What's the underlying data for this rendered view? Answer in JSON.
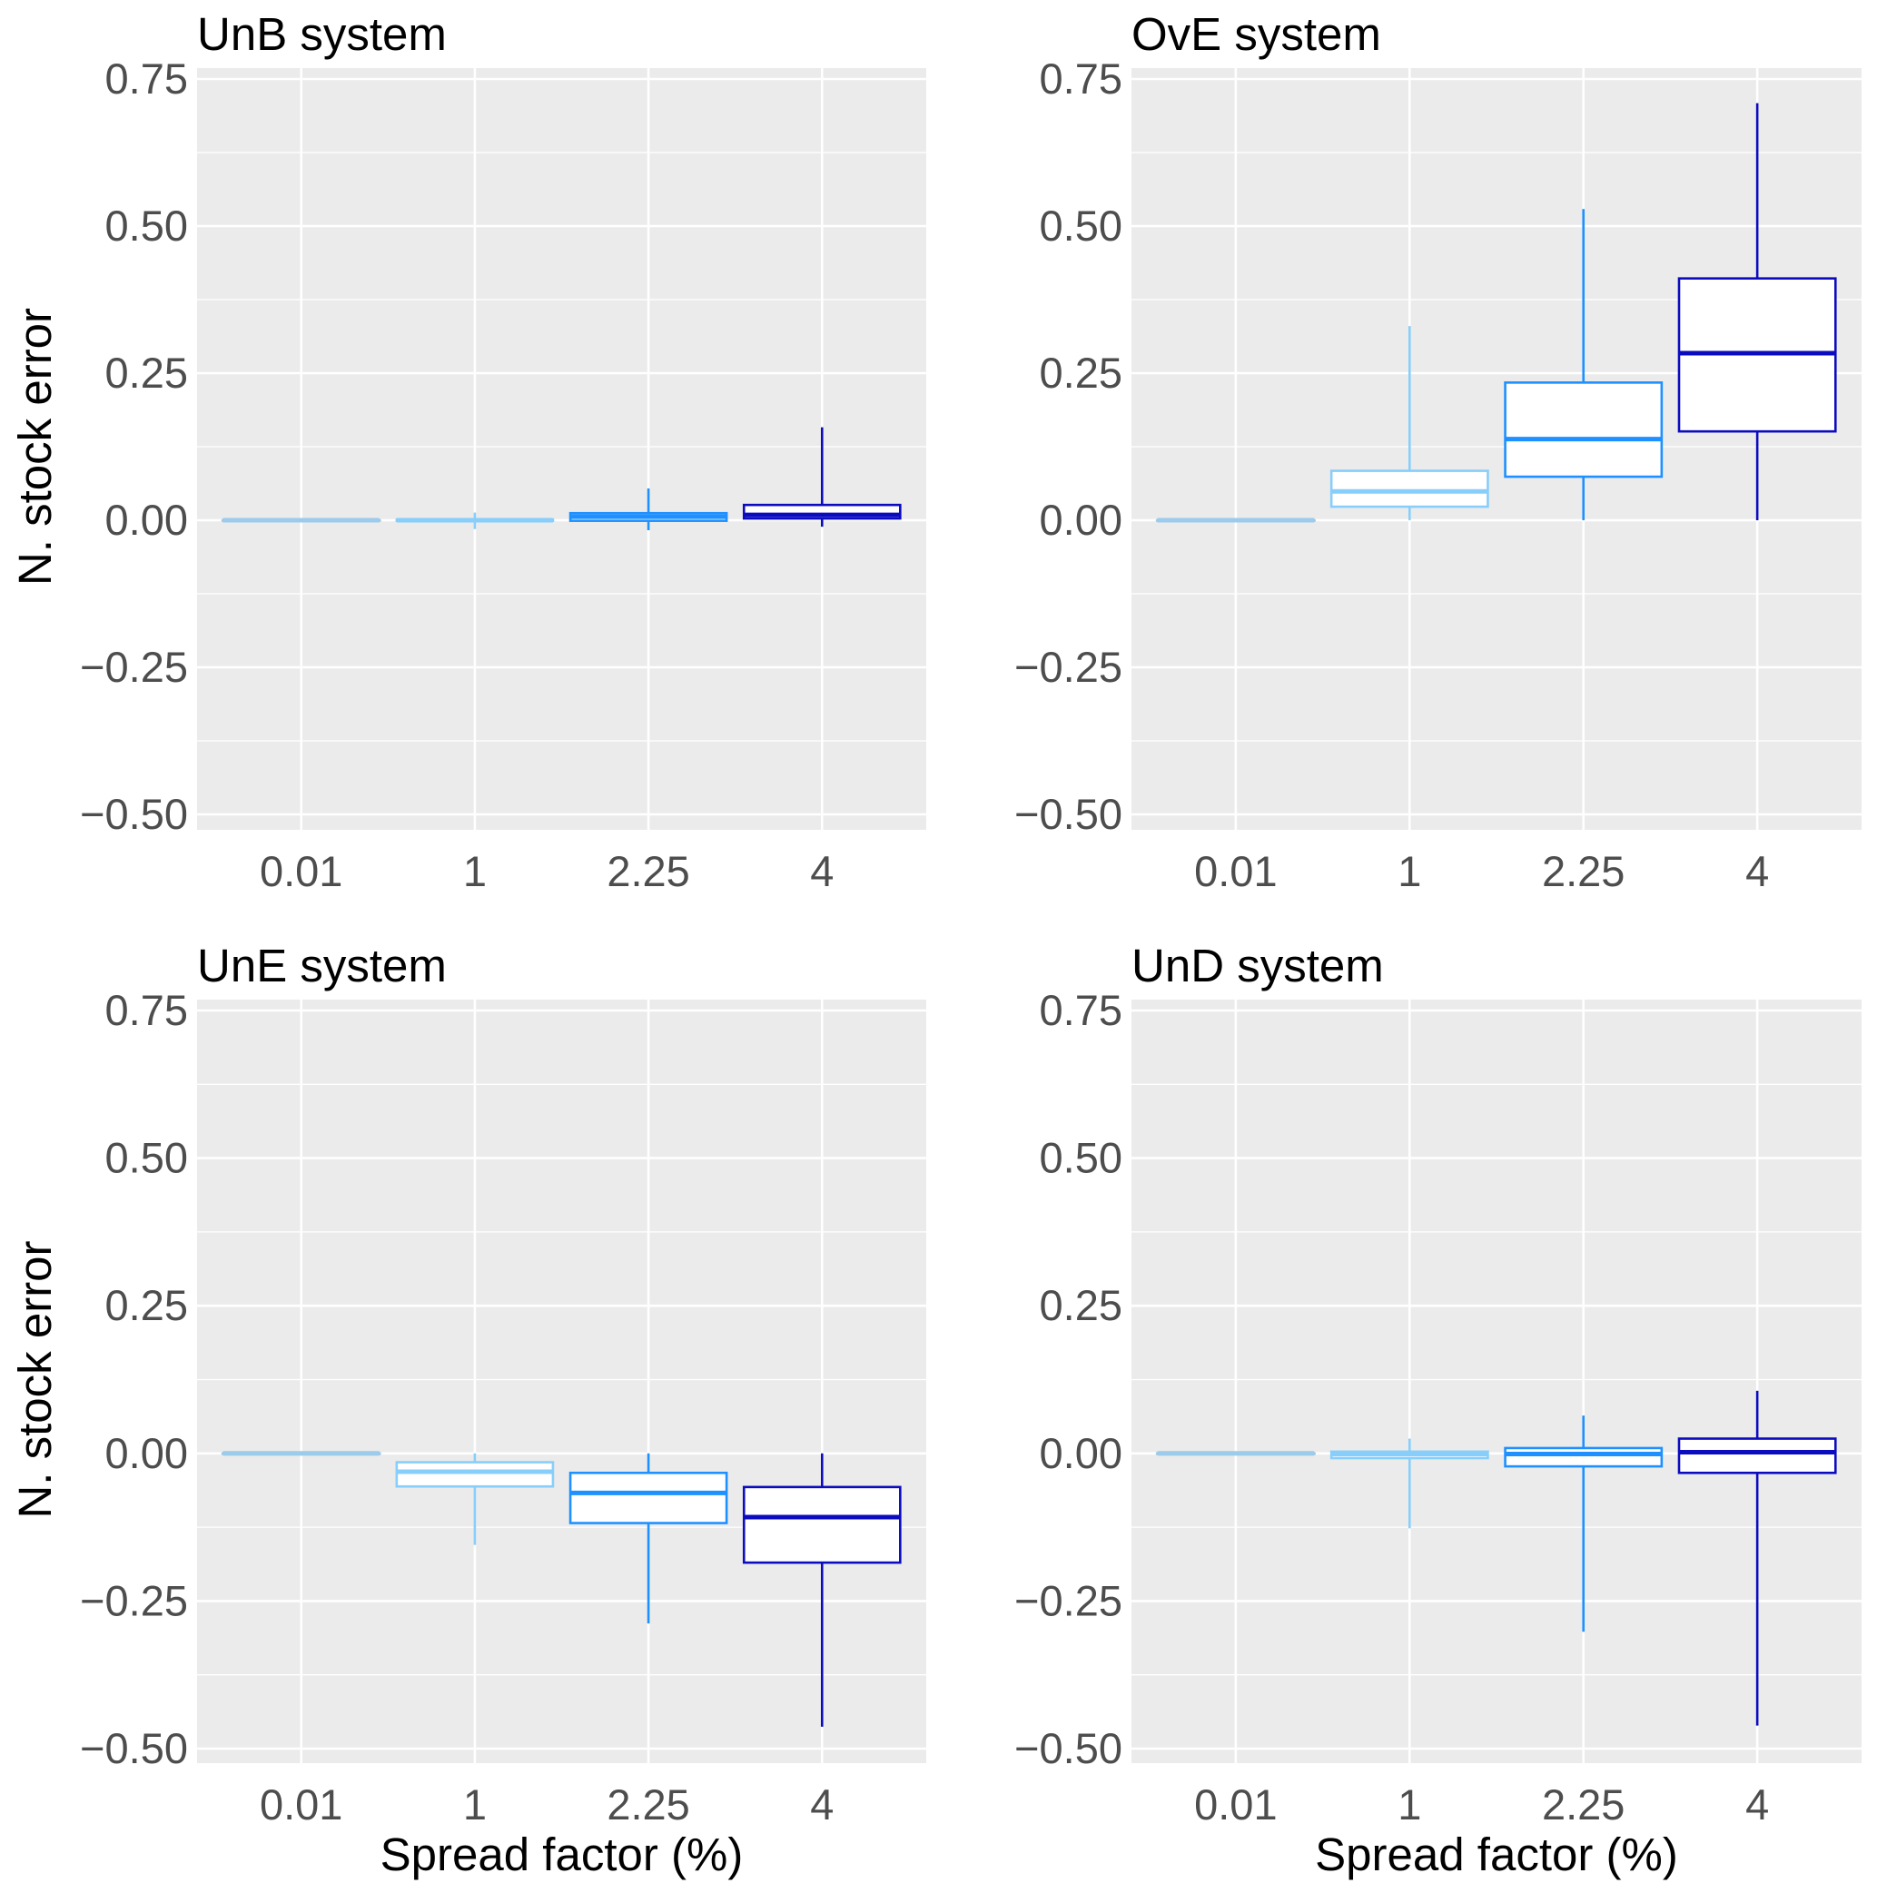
{
  "chart_data": [
    {
      "type": "box",
      "title": "UnB system",
      "xlabel": "",
      "ylabel": "N. stock error",
      "ylim": [
        -0.5,
        0.75
      ],
      "yticks": [
        "0.75",
        "0.50",
        "0.25",
        "0.00",
        "−0.25",
        "−0.50"
      ],
      "ytick_values": [
        0.75,
        0.5,
        0.25,
        0.0,
        -0.25,
        -0.5
      ],
      "categories": [
        "0.01",
        "1",
        "2.25",
        "4"
      ],
      "colors": [
        "#9ccbeb",
        "#87cefa",
        "#1e90ff",
        "#0b0bbf"
      ],
      "boxes": [
        {
          "category": "0.01",
          "whisker_low": 0.0,
          "q1": 0.0,
          "median": 0.0,
          "q3": 0.0,
          "whisker_high": 0.0
        },
        {
          "category": "1",
          "whisker_low": -0.015,
          "q1": -0.001,
          "median": 0.0,
          "q3": 0.001,
          "whisker_high": 0.013
        },
        {
          "category": "2.25",
          "whisker_low": -0.017,
          "q1": -0.001,
          "median": 0.006,
          "q3": 0.012,
          "whisker_high": 0.054
        },
        {
          "category": "4",
          "whisker_low": -0.011,
          "q1": 0.003,
          "median": 0.009,
          "q3": 0.026,
          "whisker_high": 0.158
        }
      ],
      "grid": true
    },
    {
      "type": "box",
      "title": "OvE system",
      "xlabel": "",
      "ylabel": "",
      "ylim": [
        -0.5,
        0.75
      ],
      "yticks": [
        "0.75",
        "0.50",
        "0.25",
        "0.00",
        "−0.25",
        "−0.50"
      ],
      "ytick_values": [
        0.75,
        0.5,
        0.25,
        0.0,
        -0.25,
        -0.5
      ],
      "categories": [
        "0.01",
        "1",
        "2.25",
        "4"
      ],
      "colors": [
        "#9ccbeb",
        "#87cefa",
        "#1e90ff",
        "#0b0bbf"
      ],
      "boxes": [
        {
          "category": "0.01",
          "whisker_low": 0.0,
          "q1": 0.0,
          "median": 0.0,
          "q3": 0.0,
          "whisker_high": 0.0
        },
        {
          "category": "1",
          "whisker_low": 0.0,
          "q1": 0.023,
          "median": 0.049,
          "q3": 0.084,
          "whisker_high": 0.33
        },
        {
          "category": "2.25",
          "whisker_low": 0.0,
          "q1": 0.074,
          "median": 0.138,
          "q3": 0.234,
          "whisker_high": 0.529
        },
        {
          "category": "4",
          "whisker_low": 0.0,
          "q1": 0.151,
          "median": 0.284,
          "q3": 0.411,
          "whisker_high": 0.709
        }
      ],
      "grid": true
    },
    {
      "type": "box",
      "title": "UnE system",
      "xlabel": "Spread factor (%)",
      "ylabel": "N. stock error",
      "ylim": [
        -0.5,
        0.75
      ],
      "yticks": [
        "0.75",
        "0.50",
        "0.25",
        "0.00",
        "−0.25",
        "−0.50"
      ],
      "ytick_values": [
        0.75,
        0.5,
        0.25,
        0.0,
        -0.25,
        -0.5
      ],
      "categories": [
        "0.01",
        "1",
        "2.25",
        "4"
      ],
      "colors": [
        "#9ccbeb",
        "#87cefa",
        "#1e90ff",
        "#0b0bbf"
      ],
      "boxes": [
        {
          "category": "0.01",
          "whisker_low": 0.0,
          "q1": 0.0,
          "median": 0.0,
          "q3": 0.0,
          "whisker_high": 0.0
        },
        {
          "category": "1",
          "whisker_low": -0.155,
          "q1": -0.056,
          "median": -0.031,
          "q3": -0.015,
          "whisker_high": 0.0
        },
        {
          "category": "2.25",
          "whisker_low": -0.288,
          "q1": -0.118,
          "median": -0.067,
          "q3": -0.033,
          "whisker_high": 0.0
        },
        {
          "category": "4",
          "whisker_low": -0.463,
          "q1": -0.185,
          "median": -0.108,
          "q3": -0.057,
          "whisker_high": 0.0
        }
      ],
      "grid": true
    },
    {
      "type": "box",
      "title": "UnD system",
      "xlabel": "Spread factor (%)",
      "ylabel": "",
      "ylim": [
        -0.5,
        0.75
      ],
      "yticks": [
        "0.75",
        "0.50",
        "0.25",
        "0.00",
        "−0.25",
        "−0.50"
      ],
      "ytick_values": [
        0.75,
        0.5,
        0.25,
        0.0,
        -0.25,
        -0.5
      ],
      "categories": [
        "0.01",
        "1",
        "2.25",
        "4"
      ],
      "colors": [
        "#9ccbeb",
        "#87cefa",
        "#1e90ff",
        "#0b0bbf"
      ],
      "boxes": [
        {
          "category": "0.01",
          "whisker_low": 0.0,
          "q1": 0.0,
          "median": 0.0,
          "q3": 0.0,
          "whisker_high": 0.0
        },
        {
          "category": "1",
          "whisker_low": -0.127,
          "q1": -0.008,
          "median": -0.001,
          "q3": 0.003,
          "whisker_high": 0.025
        },
        {
          "category": "2.25",
          "whisker_low": -0.302,
          "q1": -0.022,
          "median": -0.001,
          "q3": 0.009,
          "whisker_high": 0.064
        },
        {
          "category": "4",
          "whisker_low": -0.461,
          "q1": -0.033,
          "median": 0.002,
          "q3": 0.025,
          "whisker_high": 0.106
        }
      ],
      "grid": true
    }
  ]
}
